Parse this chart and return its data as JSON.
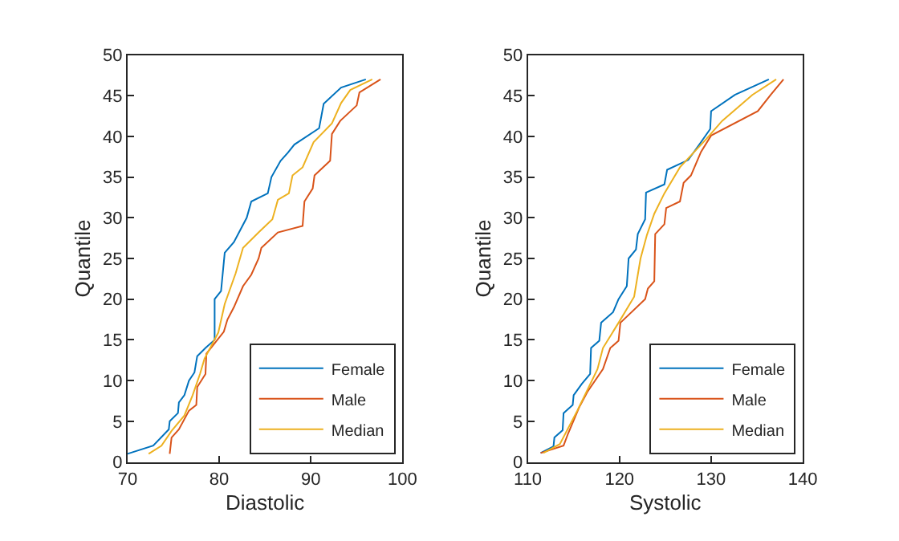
{
  "chart_data": [
    {
      "type": "line",
      "xlabel": "Diastolic",
      "ylabel": "Quantile",
      "xlim": [
        70,
        100
      ],
      "xticks": [
        70,
        80,
        90,
        100
      ],
      "ylim": [
        0,
        50
      ],
      "yticks": [
        0,
        5,
        10,
        15,
        20,
        25,
        30,
        35,
        40,
        45,
        50
      ],
      "grid": false,
      "legend": "bottom right",
      "marker": "none",
      "line_style": "solid",
      "series": [
        {
          "name": "Female",
          "color": "#0072bd",
          "x": [
            70,
            72.8,
            74.5,
            74.6,
            75.5,
            75.6,
            76.2,
            76.7,
            77.3,
            77.6,
            78.5,
            79.5,
            79.5,
            80.2,
            80.6,
            81.6,
            83,
            83.5,
            85.3,
            85.7,
            86.7,
            87.5,
            88.2,
            90.9,
            91.4,
            93.3,
            96
          ],
          "values": [
            1,
            2,
            4,
            5,
            6,
            7.3,
            8.2,
            10,
            11,
            13,
            14,
            15,
            20,
            21,
            25.7,
            27,
            30,
            32,
            33,
            35,
            37,
            38,
            39,
            41,
            44,
            46,
            47
          ]
        },
        {
          "name": "Male",
          "color": "#d95319",
          "x": [
            74.6,
            74.8,
            75.6,
            76.7,
            77.5,
            77.6,
            78.5,
            78.6,
            80.5,
            80.9,
            81.6,
            82.6,
            83.5,
            84.3,
            84.6,
            86.4,
            89.1,
            89.3,
            90.2,
            90.4,
            92.1,
            92.3,
            93.2,
            95,
            95.3,
            97.6
          ],
          "values": [
            1,
            3,
            4,
            6.3,
            7,
            9.2,
            10.8,
            13.3,
            16,
            17.5,
            19,
            21.6,
            23,
            25,
            26.3,
            28.2,
            29,
            32,
            33.6,
            35.2,
            37,
            40.3,
            41.9,
            43.8,
            45.4,
            47
          ]
        },
        {
          "name": "Median",
          "color": "#edb120",
          "x": [
            72.3,
            73.7,
            74.8,
            76.2,
            77.1,
            77.9,
            78.4,
            79.9,
            80.6,
            81.8,
            82.6,
            84.3,
            85.8,
            86.4,
            87.6,
            88,
            89.1,
            90.3,
            92.3,
            93.3,
            94.3,
            96.7
          ],
          "values": [
            1,
            2,
            3.8,
            5.7,
            8.2,
            10.8,
            12.7,
            15.9,
            19.4,
            23.2,
            26.3,
            28.2,
            29.8,
            32.2,
            33,
            35.2,
            36.2,
            39.3,
            41.6,
            44.1,
            45.7,
            47
          ]
        }
      ]
    },
    {
      "type": "line",
      "xlabel": "Systolic",
      "ylabel": "Quantile",
      "xlim": [
        110,
        140
      ],
      "xticks": [
        110,
        120,
        130,
        140
      ],
      "ylim": [
        0,
        50
      ],
      "yticks": [
        0,
        5,
        10,
        15,
        20,
        25,
        30,
        35,
        40,
        45,
        50
      ],
      "grid": false,
      "legend": "bottom right",
      "marker": "none",
      "line_style": "solid",
      "series": [
        {
          "name": "Female",
          "color": "#0072bd",
          "x": [
            111.4,
            112.8,
            112.9,
            113.8,
            113.9,
            114.9,
            115,
            115.9,
            116.8,
            116.9,
            117.8,
            118,
            119.3,
            119.9,
            120.8,
            121,
            121.8,
            122,
            122.8,
            122.9,
            124.9,
            125.2,
            127.5,
            128.9,
            129.9,
            130,
            132.6,
            136.3
          ],
          "values": [
            1.1,
            1.9,
            3,
            3.9,
            6,
            7,
            8.2,
            9.6,
            10.8,
            14,
            14.9,
            17.1,
            18.4,
            20,
            21.6,
            25,
            26.1,
            28,
            29.8,
            33.1,
            34.1,
            35.9,
            37.1,
            39.3,
            40.9,
            43.1,
            45.1,
            47
          ]
        },
        {
          "name": "Male",
          "color": "#d95319",
          "x": [
            111.4,
            113.9,
            114.4,
            115.6,
            116.5,
            118.2,
            119,
            119.9,
            120.1,
            122.8,
            123.1,
            123.8,
            123.9,
            124.9,
            125.1,
            126.6,
            127,
            127.8,
            128.9,
            130,
            135.1,
            136.5,
            137.9
          ],
          "values": [
            1.1,
            2,
            3.5,
            6.7,
            8.6,
            11.4,
            14,
            14.9,
            17.1,
            20,
            21.3,
            22.2,
            28,
            29.2,
            31.2,
            32,
            34.3,
            35.2,
            38.1,
            40.1,
            43.1,
            45.1,
            47
          ]
        },
        {
          "name": "Median",
          "color": "#edb120",
          "x": [
            111.7,
            113.5,
            115.4,
            117.6,
            118.2,
            119.9,
            121.6,
            122.3,
            123,
            123.8,
            124.9,
            126.6,
            129.5,
            131.2,
            134.5,
            137.1
          ],
          "values": [
            1.1,
            2.2,
            6.3,
            11.4,
            14,
            17.1,
            20.3,
            25,
            27.9,
            30.5,
            33,
            36.2,
            39.7,
            41.9,
            45.1,
            47
          ]
        }
      ]
    }
  ]
}
